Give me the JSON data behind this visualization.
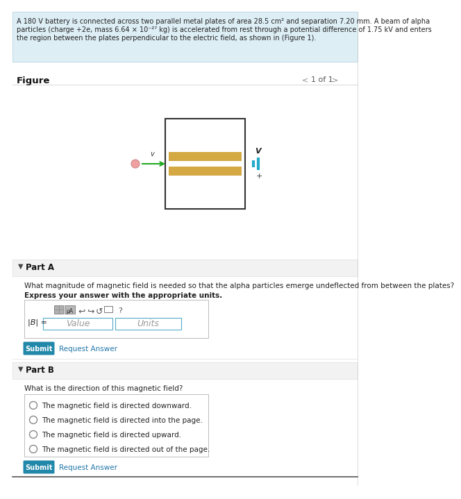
{
  "bg_color": "#ffffff",
  "problem_bg": "#ddeef5",
  "problem_border": "#c5dce8",
  "problem_line1": "A 180 V battery is connected across two parallel metal plates of area 28.5 cm² and separation 7.20 mm. A beam of alpha",
  "problem_line2": "particles (charge +2e, mass 6.64 × 10⁻²⁷ kg) is accelerated from rest through a potential difference of 1.75 kV and enters",
  "problem_line3": "the region between the plates perpendicular to the electric field, as shown in (Figure 1).",
  "figure_label": "Figure",
  "figure_nav": "1 of 1",
  "part_a_label": "Part A",
  "part_a_question": "What magnitude of magnetic field is needed so that the alpha particles emerge undeflected from between the plates?",
  "part_a_instruction": "Express your answer with the appropriate units.",
  "b_label": "|B| =",
  "value_placeholder": "Value",
  "units_placeholder": "Units",
  "submit_color": "#2288aa",
  "submit_color2": "#1a7a9e",
  "part_b_label": "Part B",
  "part_b_question": "What is the direction of this magnetic field?",
  "radio_options": [
    "The magnetic field is directed downward.",
    "The magnetic field is directed into the page.",
    "The magnetic field is directed upward.",
    "The magnetic field is directed out of the page."
  ],
  "header_bg": "#f2f2f2",
  "divider_color": "#dddddd",
  "link_color": "#2277aa",
  "plate_color": "#d4a843",
  "box_border": "#aaaaaa",
  "right_border": "#cccccc"
}
